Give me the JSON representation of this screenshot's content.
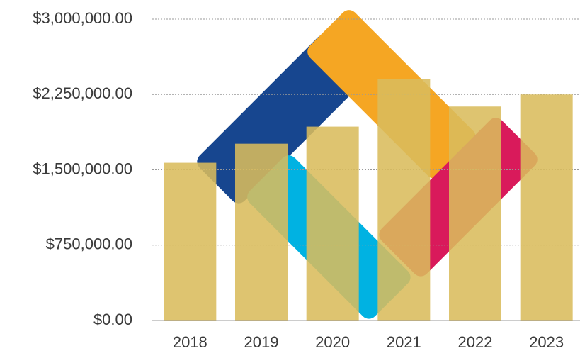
{
  "chart_data": {
    "type": "bar",
    "categories": [
      "2018",
      "2019",
      "2020",
      "2021",
      "2022",
      "2023"
    ],
    "values": [
      1570000,
      1760000,
      1930000,
      2400000,
      2130000,
      2250000
    ],
    "color": "#d9bc5c",
    "ylim": [
      0,
      3000000
    ],
    "yticks": [
      {
        "value": 0,
        "label": "$0.00"
      },
      {
        "value": 750000,
        "label": "$750,000.00"
      },
      {
        "value": 1500000,
        "label": "$1,500,000.00"
      },
      {
        "value": 2250000,
        "label": "$2,250,000.00"
      },
      {
        "value": 3000000,
        "label": "$3,000,000.00"
      }
    ],
    "grid": true
  }
}
